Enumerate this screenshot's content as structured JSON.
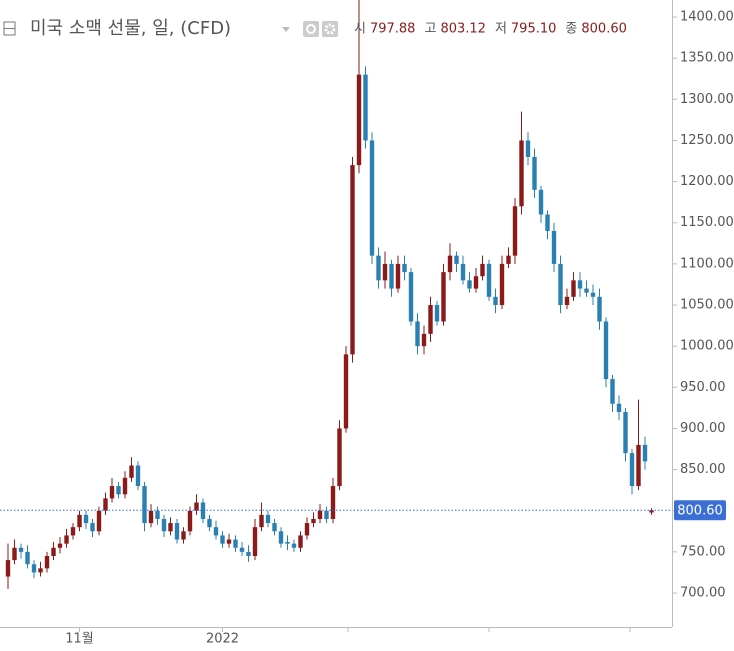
{
  "chart_data": {
    "type": "candlestick",
    "title": "미국 소맥 선물, 일, (CFD)",
    "header_labels": [
      "시",
      "고",
      "저",
      "종"
    ],
    "last_labels": [
      "797.88",
      "803.12",
      "795.10",
      "800.60"
    ],
    "open": [
      720,
      740,
      755,
      750,
      735,
      725,
      730,
      745,
      755,
      760,
      770,
      780,
      795,
      785,
      775,
      800,
      815,
      830,
      820,
      840,
      855,
      830,
      785,
      800,
      790,
      775,
      785,
      765,
      775,
      800,
      810,
      790,
      780,
      770,
      760,
      765,
      755,
      750,
      745,
      780,
      795,
      785,
      775,
      762,
      760,
      755,
      770,
      785,
      790,
      800,
      790,
      830,
      900,
      990,
      1220,
      1330,
      1250,
      1110,
      1080,
      1100,
      1070,
      1100,
      1090,
      1030,
      1000,
      1015,
      1050,
      1030,
      1090,
      1110,
      1100,
      1080,
      1070,
      1085,
      1100,
      1060,
      1050,
      1100,
      1110,
      1170,
      1250,
      1230,
      1190,
      1160,
      1140,
      1100,
      1050,
      1060,
      1080,
      1070,
      1065,
      1060,
      1030,
      960,
      930,
      920,
      870,
      830,
      880,
      797.88
    ],
    "high": [
      760,
      765,
      760,
      758,
      740,
      738,
      750,
      762,
      768,
      778,
      785,
      800,
      800,
      790,
      805,
      822,
      840,
      835,
      848,
      865,
      860,
      835,
      808,
      805,
      795,
      792,
      790,
      780,
      805,
      820,
      815,
      795,
      788,
      775,
      772,
      770,
      762,
      758,
      790,
      810,
      800,
      790,
      780,
      770,
      765,
      775,
      792,
      798,
      808,
      805,
      840,
      910,
      1000,
      1230,
      1425,
      1340,
      1260,
      1120,
      1115,
      1105,
      1110,
      1110,
      1095,
      1040,
      1025,
      1060,
      1055,
      1100,
      1125,
      1115,
      1110,
      1090,
      1095,
      1110,
      1105,
      1070,
      1110,
      1120,
      1180,
      1285,
      1260,
      1240,
      1195,
      1165,
      1150,
      1110,
      1070,
      1090,
      1090,
      1080,
      1075,
      1070,
      1035,
      965,
      940,
      925,
      875,
      935,
      890,
      803.12
    ],
    "low": [
      705,
      735,
      742,
      730,
      718,
      720,
      725,
      740,
      748,
      755,
      765,
      775,
      778,
      768,
      770,
      795,
      810,
      815,
      815,
      835,
      825,
      775,
      780,
      783,
      768,
      770,
      760,
      760,
      770,
      795,
      785,
      775,
      765,
      755,
      755,
      750,
      745,
      738,
      740,
      775,
      780,
      770,
      755,
      752,
      750,
      750,
      765,
      780,
      785,
      785,
      785,
      825,
      895,
      980,
      1210,
      1240,
      1100,
      1070,
      1070,
      1060,
      1065,
      1080,
      1025,
      990,
      990,
      1005,
      1025,
      1025,
      1080,
      1090,
      1075,
      1065,
      1065,
      1080,
      1055,
      1040,
      1045,
      1095,
      1100,
      1160,
      1220,
      1180,
      1150,
      1130,
      1090,
      1040,
      1045,
      1055,
      1060,
      1060,
      1050,
      1020,
      950,
      920,
      910,
      860,
      820,
      825,
      850,
      795.1
    ],
    "close": [
      740,
      755,
      750,
      735,
      725,
      730,
      745,
      755,
      760,
      770,
      780,
      795,
      785,
      775,
      800,
      815,
      830,
      820,
      840,
      855,
      830,
      785,
      800,
      790,
      775,
      785,
      765,
      775,
      800,
      810,
      790,
      780,
      770,
      760,
      765,
      755,
      750,
      745,
      780,
      795,
      785,
      775,
      760,
      760,
      755,
      770,
      785,
      790,
      800,
      790,
      830,
      900,
      990,
      1220,
      1330,
      1250,
      1110,
      1080,
      1100,
      1070,
      1100,
      1090,
      1030,
      1000,
      1015,
      1050,
      1030,
      1090,
      1110,
      1100,
      1080,
      1070,
      1085,
      1100,
      1060,
      1050,
      1100,
      1110,
      1170,
      1250,
      1230,
      1190,
      1160,
      1140,
      1100,
      1050,
      1060,
      1080,
      1070,
      1065,
      1060,
      1030,
      960,
      930,
      920,
      870,
      830,
      880,
      860,
      800.6
    ],
    "up_color": "#8b1a1a",
    "down_color": "#2b80b2",
    "price_line_color": "#3b6fd6",
    "ylim": [
      658.7,
      1420.7
    ],
    "yticks": [
      {
        "value": 700,
        "label": "700.00"
      },
      {
        "value": 750,
        "label": "750.00"
      },
      {
        "value": 800,
        "label": "800.00"
      },
      {
        "value": 850,
        "label": "850.00"
      },
      {
        "value": 900,
        "label": "900.00"
      },
      {
        "value": 950,
        "label": "950.00"
      },
      {
        "value": 1000,
        "label": "1000.00"
      },
      {
        "value": 1050,
        "label": "1050.00"
      },
      {
        "value": 1100,
        "label": "1100.00"
      },
      {
        "value": 1150,
        "label": "1150.00"
      },
      {
        "value": 1200,
        "label": "1200.00"
      },
      {
        "value": 1250,
        "label": "1250.00"
      },
      {
        "value": 1300,
        "label": "1300.00"
      },
      {
        "value": 1350,
        "label": "1350.00"
      },
      {
        "value": 1400,
        "label": "1400.00"
      }
    ],
    "xticks": [
      {
        "value": 11,
        "label": "11월"
      },
      {
        "value": 33,
        "label": "2022"
      },
      {
        "value": 52.3,
        "label": null
      },
      {
        "value": 74,
        "label": null
      },
      {
        "value": 95.7,
        "label": null
      }
    ]
  }
}
